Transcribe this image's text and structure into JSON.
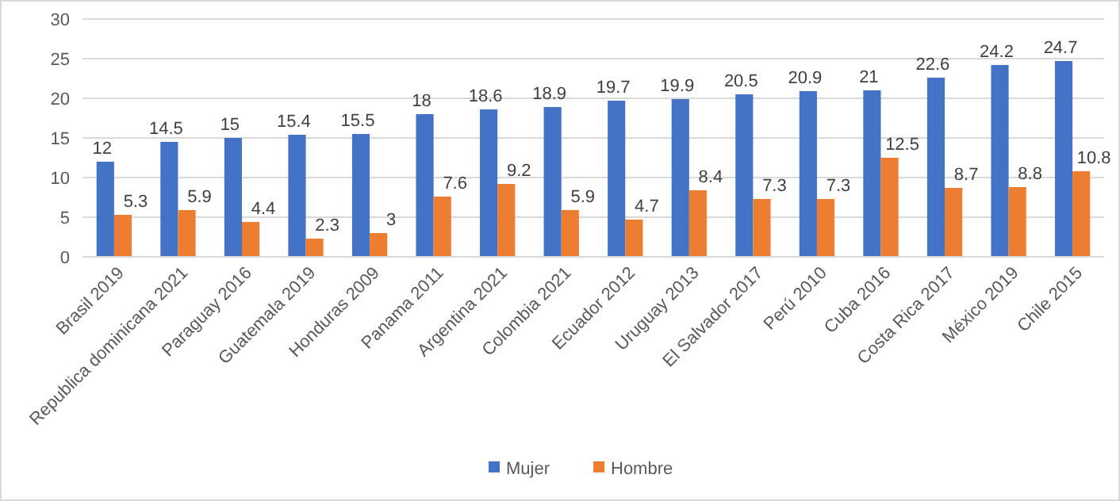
{
  "chart_data": {
    "type": "bar",
    "categories": [
      "Brasil 2019",
      "Republica dominicana 2021",
      "Paraguay 2016",
      "Guatemala 2019",
      "Honduras 2009",
      "Panama 2011",
      "Argentina 2021",
      "Colombia 2021",
      "Ecuador 2012",
      "Uruguay 2013",
      "El Salvador 2017",
      "Perú 2010",
      "Cuba 2016",
      "Costa Rica 2017",
      "México 2019",
      "Chile 2015"
    ],
    "series": [
      {
        "name": "Mujer",
        "color": "#4472c4",
        "values": [
          12,
          14.5,
          15,
          15.4,
          15.5,
          18,
          18.6,
          18.9,
          19.7,
          19.9,
          20.5,
          20.9,
          21,
          22.6,
          24.2,
          24.7
        ]
      },
      {
        "name": "Hombre",
        "color": "#ed7d31",
        "values": [
          5.3,
          5.9,
          4.4,
          2.3,
          3,
          7.6,
          9.2,
          5.9,
          4.7,
          8.4,
          7.3,
          7.3,
          12.5,
          8.7,
          8.8,
          10.8
        ]
      }
    ],
    "ylim": [
      0,
      30
    ],
    "yticks": [
      0,
      5,
      10,
      15,
      20,
      25,
      30
    ],
    "grid": "y",
    "legend": "bottom",
    "data_labels": true
  }
}
